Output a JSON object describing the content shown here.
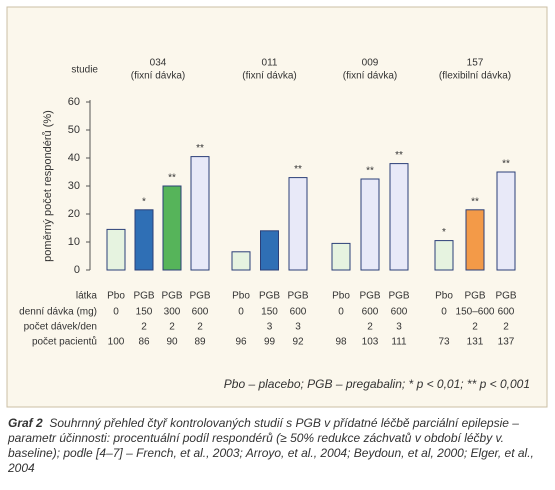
{
  "chart_data": {
    "type": "bar",
    "y_label": "poměrný počet respondérů (%)",
    "ylim": [
      0,
      60
    ],
    "yticks": [
      0,
      10,
      20,
      30,
      40,
      50,
      60
    ],
    "row_labels": {
      "study": "studie",
      "substance": "látka",
      "dose": "denní dávka (mg)",
      "doses_per_day": "počet dávek/den",
      "patients": "počet pacientů"
    },
    "groups": [
      {
        "name": "034",
        "subtitle": "(fixní dávka)",
        "bars": [
          {
            "substance": "Pbo",
            "dose": 0,
            "doses_per_day": null,
            "patients": 100,
            "value": 14.5,
            "significance": null,
            "color": "#e6f3e0"
          },
          {
            "substance": "PGB",
            "dose": 150,
            "doses_per_day": 2,
            "patients": 86,
            "value": 21.5,
            "significance": "*",
            "color": "#2f6fb5"
          },
          {
            "substance": "PGB",
            "dose": 300,
            "doses_per_day": 2,
            "patients": 90,
            "value": 30,
            "significance": "**",
            "color": "#56b45a"
          },
          {
            "substance": "PGB",
            "dose": 600,
            "doses_per_day": 2,
            "patients": 89,
            "value": 40.5,
            "significance": "**",
            "color": "#e8e9f8"
          }
        ]
      },
      {
        "name": "011",
        "subtitle": "(fixní dávka)",
        "bars": [
          {
            "substance": "Pbo",
            "dose": 0,
            "doses_per_day": null,
            "patients": 96,
            "value": 6.5,
            "significance": null,
            "color": "#e6f3e0"
          },
          {
            "substance": "PGB",
            "dose": 150,
            "doses_per_day": 3,
            "patients": 99,
            "value": 14,
            "significance": null,
            "color": "#2f6fb5"
          },
          {
            "substance": "PGB",
            "dose": 600,
            "doses_per_day": 3,
            "patients": 92,
            "value": 33,
            "significance": "**",
            "color": "#e8e9f8"
          }
        ]
      },
      {
        "name": "009",
        "subtitle": "(fixní dávka)",
        "bars": [
          {
            "substance": "Pbo",
            "dose": 0,
            "doses_per_day": null,
            "patients": 98,
            "value": 9.5,
            "significance": null,
            "color": "#e6f3e0"
          },
          {
            "substance": "PGB",
            "dose": 600,
            "doses_per_day": 2,
            "patients": 103,
            "value": 32.5,
            "significance": "**",
            "color": "#e8e9f8"
          },
          {
            "substance": "PGB",
            "dose": 600,
            "doses_per_day": 3,
            "patients": 111,
            "value": 38,
            "significance": "**",
            "color": "#e8e9f8"
          }
        ]
      },
      {
        "name": "157",
        "subtitle": "(flexibilní dávka)",
        "bars": [
          {
            "substance": "Pbo",
            "dose": 0,
            "doses_per_day": null,
            "patients": 73,
            "value": 10.5,
            "significance": "*",
            "color": "#e6f3e0"
          },
          {
            "substance": "PGB",
            "dose": "150–600",
            "doses_per_day": 2,
            "patients": 131,
            "value": 21.5,
            "significance": "**",
            "color": "#f39a48"
          },
          {
            "substance": "PGB",
            "dose": 600,
            "doses_per_day": 2,
            "patients": 137,
            "value": 35,
            "significance": "**",
            "color": "#e8e9f8"
          }
        ]
      }
    ],
    "note": "Pbo – placebo; PGB – pregabalin; * p < 0,01; ** p < 0,001"
  },
  "caption": {
    "label": "Graf 2",
    "text": "Souhrnný přehled čtyř kontrolovaných studií s PGB v přídatné léčbě parciální epilepsie – parametr účinnosti: procentuální podíl respondérů (≥ 50% redukce záchvatů v období léčby v. baseline); podle [4–7] – French, et al., 2003; Arroyo, et al., 2004; Beydoun, et al, 2000; Elger, et al., 2004"
  }
}
